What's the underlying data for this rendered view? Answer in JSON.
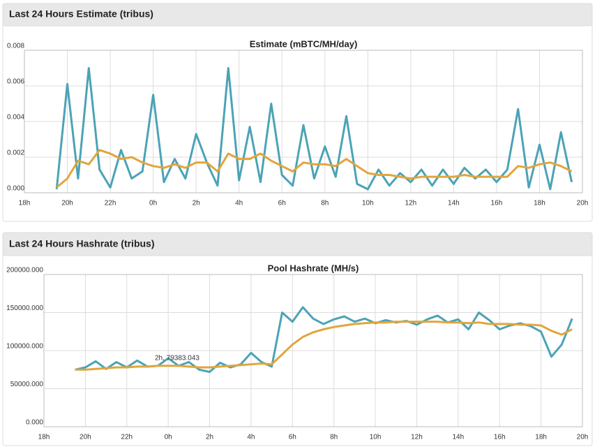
{
  "panels": [
    "Last 24 Hours Estimate (tribus)",
    "Last 24 Hours Hashrate (tribus)"
  ],
  "chart_data": [
    {
      "type": "line",
      "title": "Estimate (mBTC/MH/day)",
      "x": [
        1.5,
        2,
        2.5,
        3,
        3.5,
        4,
        4.5,
        5,
        5.5,
        6,
        6.5,
        7,
        7.5,
        8,
        8.5,
        9,
        9.5,
        10,
        10.5,
        11,
        11.5,
        12,
        12.5,
        13,
        13.5,
        14,
        14.5,
        15,
        15.5,
        16,
        16.5,
        17,
        17.5,
        18,
        18.5,
        19,
        19.5,
        20,
        20.5,
        21,
        21.5,
        22,
        22.5,
        23,
        23.5,
        24,
        24.5,
        25,
        25.5
      ],
      "xlim": [
        0,
        26
      ],
      "xticks": [
        {
          "value": 0,
          "label": "18h"
        },
        {
          "value": 2,
          "label": "20h"
        },
        {
          "value": 4,
          "label": "22h"
        },
        {
          "value": 6,
          "label": "0h"
        },
        {
          "value": 8,
          "label": "2h"
        },
        {
          "value": 10,
          "label": "4h"
        },
        {
          "value": 12,
          "label": "6h"
        },
        {
          "value": 14,
          "label": "8h"
        },
        {
          "value": 16,
          "label": "10h"
        },
        {
          "value": 18,
          "label": "12h"
        },
        {
          "value": 20,
          "label": "14h"
        },
        {
          "value": 22,
          "label": "16h"
        },
        {
          "value": 24,
          "label": "18h"
        },
        {
          "value": 26,
          "label": "20h"
        }
      ],
      "ylim": [
        0,
        0.008
      ],
      "yticks": [
        {
          "value": 0,
          "label": "0.000"
        },
        {
          "value": 0.002,
          "label": "0.002"
        },
        {
          "value": 0.004,
          "label": "0.004"
        },
        {
          "value": 0.006,
          "label": "0.006"
        },
        {
          "value": 0.008,
          "label": "0.008"
        }
      ],
      "grid": true,
      "series": [
        {
          "color": "#4ba3b6",
          "values": [
            0.0002,
            0.0061,
            0.0008,
            0.007,
            0.0013,
            0.0003,
            0.0024,
            0.0008,
            0.0012,
            0.0055,
            0.0006,
            0.0019,
            0.0008,
            0.0033,
            0.0017,
            0.0004,
            0.007,
            0.0007,
            0.0037,
            0.0006,
            0.005,
            0.001,
            0.0004,
            0.0038,
            0.0008,
            0.0026,
            0.0009,
            0.0043,
            0.0005,
            0.0002,
            0.0013,
            0.0004,
            0.0011,
            0.0006,
            0.0013,
            0.0004,
            0.0013,
            0.0005,
            0.0014,
            0.0008,
            0.0013,
            0.0006,
            0.0013,
            0.0047,
            0.0003,
            0.0027,
            0.0002,
            0.0034,
            0.0006
          ]
        },
        {
          "color": "#e2a53c",
          "values": [
            0.0003,
            0.0008,
            0.0018,
            0.0016,
            0.0024,
            0.0022,
            0.0019,
            0.002,
            0.0017,
            0.0015,
            0.0014,
            0.0016,
            0.0014,
            0.0017,
            0.0017,
            0.0012,
            0.0022,
            0.0019,
            0.0019,
            0.0022,
            0.0018,
            0.0015,
            0.0012,
            0.0017,
            0.0016,
            0.0016,
            0.0015,
            0.0019,
            0.0015,
            0.0011,
            0.001,
            0.001,
            0.0009,
            0.0008,
            0.0009,
            0.0009,
            0.0009,
            0.0009,
            0.001,
            0.0009,
            0.0009,
            0.0009,
            0.0009,
            0.0015,
            0.0014,
            0.0016,
            0.0017,
            0.0015,
            0.0012
          ]
        }
      ]
    },
    {
      "type": "line",
      "title": "Pool Hashrate (MH/s)",
      "x": [
        1.5,
        2,
        2.5,
        3,
        3.5,
        4,
        4.5,
        5,
        5.5,
        6,
        6.5,
        7,
        7.5,
        8,
        8.5,
        9,
        9.5,
        10,
        10.5,
        11,
        11.5,
        12,
        12.5,
        13,
        13.5,
        14,
        14.5,
        15,
        15.5,
        16,
        16.5,
        17,
        17.5,
        18,
        18.5,
        19,
        19.5,
        20,
        20.5,
        21,
        21.5,
        22,
        22.5,
        23,
        23.5,
        24,
        24.5,
        25,
        25.5
      ],
      "xlim": [
        0,
        26
      ],
      "xticks": [
        {
          "value": 0,
          "label": "18h"
        },
        {
          "value": 2,
          "label": "20h"
        },
        {
          "value": 4,
          "label": "22h"
        },
        {
          "value": 6,
          "label": "0h"
        },
        {
          "value": 8,
          "label": "2h"
        },
        {
          "value": 10,
          "label": "4h"
        },
        {
          "value": 12,
          "label": "6h"
        },
        {
          "value": 14,
          "label": "8h"
        },
        {
          "value": 16,
          "label": "10h"
        },
        {
          "value": 18,
          "label": "12h"
        },
        {
          "value": 20,
          "label": "14h"
        },
        {
          "value": 22,
          "label": "16h"
        },
        {
          "value": 24,
          "label": "18h"
        },
        {
          "value": 26,
          "label": "20h"
        }
      ],
      "ylim": [
        0,
        200000
      ],
      "yticks": [
        {
          "value": 0,
          "label": "0.000"
        },
        {
          "value": 50000,
          "label": "50000.000"
        },
        {
          "value": 100000,
          "label": "100000.000"
        },
        {
          "value": 150000,
          "label": "150000.000"
        },
        {
          "value": 200000,
          "label": "200000.000"
        }
      ],
      "grid": true,
      "annotation": "2h, 79383.043",
      "series": [
        {
          "color": "#4ba3b6",
          "values": [
            75000,
            78000,
            86000,
            76000,
            85000,
            78000,
            87000,
            79000,
            80000,
            90000,
            80000,
            85000,
            75000,
            72000,
            84000,
            78000,
            82000,
            97000,
            85000,
            79000,
            150000,
            138000,
            157000,
            142000,
            135000,
            141000,
            145000,
            138000,
            142000,
            136000,
            140000,
            137000,
            139000,
            134000,
            141000,
            146000,
            137000,
            141000,
            128000,
            150000,
            140000,
            128000,
            133000,
            136000,
            132000,
            125000,
            92000,
            108000,
            142000
          ]
        },
        {
          "color": "#e2a53c",
          "values": [
            75000,
            75000,
            76000,
            77000,
            78000,
            78000,
            79000,
            79000,
            80000,
            80000,
            80000,
            79000,
            78000,
            78000,
            79000,
            80000,
            81000,
            82000,
            83000,
            82000,
            95000,
            108000,
            118000,
            124000,
            128000,
            131000,
            133000,
            135000,
            136000,
            137000,
            137000,
            138000,
            138000,
            138000,
            138000,
            138000,
            137000,
            137000,
            136000,
            137000,
            135000,
            135000,
            135000,
            134000,
            134000,
            133000,
            126000,
            121000,
            128000
          ]
        }
      ]
    }
  ]
}
